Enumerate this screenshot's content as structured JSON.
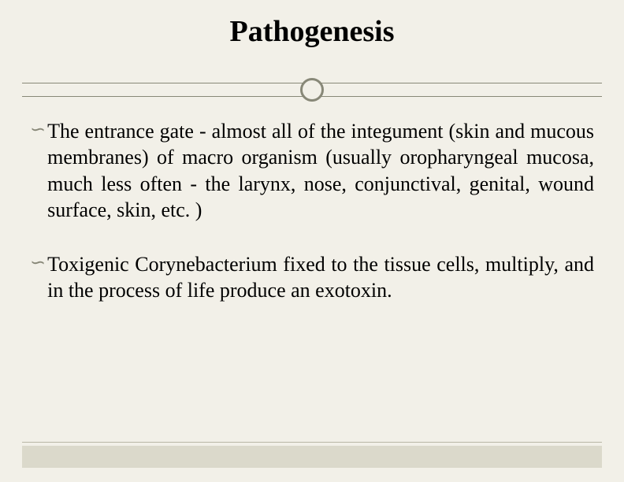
{
  "slide": {
    "title": "Pathogenesis",
    "title_fontsize": 38,
    "title_color": "#000000",
    "title_weight": "bold",
    "background_color": "#f2f0e8",
    "divider_color": "#888878",
    "circle_border_color": "#888878",
    "circle_border_width": 3,
    "footer_bar_color": "#dbd9cb",
    "body_fontsize": 26,
    "body_color": "#000000",
    "bullet_marker": "∽",
    "bullet_marker_color": "#888878",
    "bullets": [
      {
        "text": "The entrance gate - almost all of the integument (skin and mucous membranes) of macro organism (usually oropharyngeal mucosa, much less often - the larynx, nose, conjunctival, genital, wound surface, skin, etc. )"
      },
      {
        "text": "Toxigenic Corynebacterium fixed to the tissue cells, multiply, and in the process of life produce an exotoxin."
      }
    ]
  }
}
